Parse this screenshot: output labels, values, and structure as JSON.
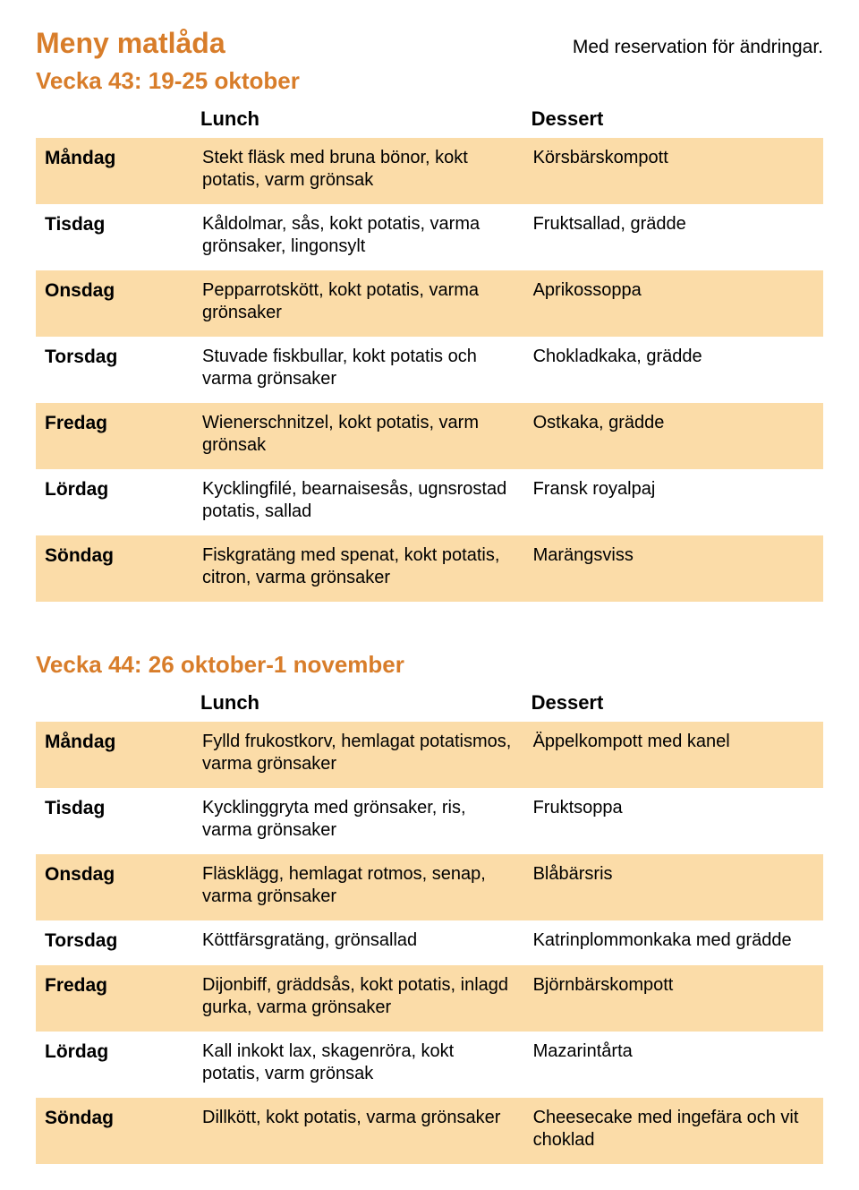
{
  "colors": {
    "accent": "#d87d2a",
    "shade": "#fbdca8",
    "text": "#000000",
    "background": "#ffffff"
  },
  "typography": {
    "family": "Trebuchet MS",
    "title_size_pt": 24,
    "week_title_size_pt": 20,
    "body_size_pt": 15
  },
  "doc_title": "Meny matlåda",
  "disclaimer": "Med reservation för ändringar.",
  "columns": {
    "lunch": "Lunch",
    "dessert": "Dessert"
  },
  "weeks": [
    {
      "title": "Vecka 43: 19-25 oktober",
      "days": [
        {
          "day": "Måndag",
          "lunch": "Stekt fläsk med bruna bönor, kokt potatis, varm grönsak",
          "dessert": "Körsbärskompott",
          "shaded": true
        },
        {
          "day": "Tisdag",
          "lunch": "Kåldolmar, sås, kokt potatis, varma grönsaker, lingonsylt",
          "dessert": "Fruktsallad, grädde",
          "shaded": false
        },
        {
          "day": "Onsdag",
          "lunch": "Pepparrotskött, kokt potatis, varma grönsaker",
          "dessert": "Aprikossoppa",
          "shaded": true
        },
        {
          "day": "Torsdag",
          "lunch": "Stuvade fiskbullar, kokt potatis och varma grönsaker",
          "dessert": "Chokladkaka, grädde",
          "shaded": false
        },
        {
          "day": "Fredag",
          "lunch": "Wienerschnitzel, kokt potatis, varm grönsak",
          "dessert": "Ostkaka, grädde",
          "shaded": true
        },
        {
          "day": "Lördag",
          "lunch": "Kycklingfilé, bearnaisesås, ugnsrostad potatis, sallad",
          "dessert": "Fransk royalpaj",
          "shaded": false
        },
        {
          "day": "Söndag",
          "lunch": "Fiskgratäng med spenat, kokt potatis, citron, varma grönsaker",
          "dessert": "Marängsviss",
          "shaded": true
        }
      ]
    },
    {
      "title": "Vecka 44: 26 oktober-1 november",
      "days": [
        {
          "day": "Måndag",
          "lunch": "Fylld frukostkorv, hemlagat potatismos, varma grönsaker",
          "dessert": "Äppelkompott med kanel",
          "shaded": true
        },
        {
          "day": "Tisdag",
          "lunch": "Kycklinggryta med grönsaker, ris, varma grönsaker",
          "dessert": "Fruktsoppa",
          "shaded": false
        },
        {
          "day": "Onsdag",
          "lunch": "Fläsklägg, hemlagat rotmos, senap, varma grönsaker",
          "dessert": "Blåbärsris",
          "shaded": true
        },
        {
          "day": "Torsdag",
          "lunch": "Köttfärsgratäng, grönsallad",
          "dessert": "Katrinplommonkaka med grädde",
          "shaded": false
        },
        {
          "day": "Fredag",
          "lunch": "Dijonbiff, gräddsås, kokt potatis, inlagd gurka, varma grönsaker",
          "dessert": "Björnbärskompott",
          "shaded": true
        },
        {
          "day": "Lördag",
          "lunch": "Kall inkokt lax, skagenröra, kokt potatis, varm grönsak",
          "dessert": "Mazarintårta",
          "shaded": false
        },
        {
          "day": "Söndag",
          "lunch": "Dillkött, kokt potatis, varma grönsaker",
          "dessert": "Cheesecake med ingefära och vit choklad",
          "shaded": true
        }
      ]
    }
  ]
}
